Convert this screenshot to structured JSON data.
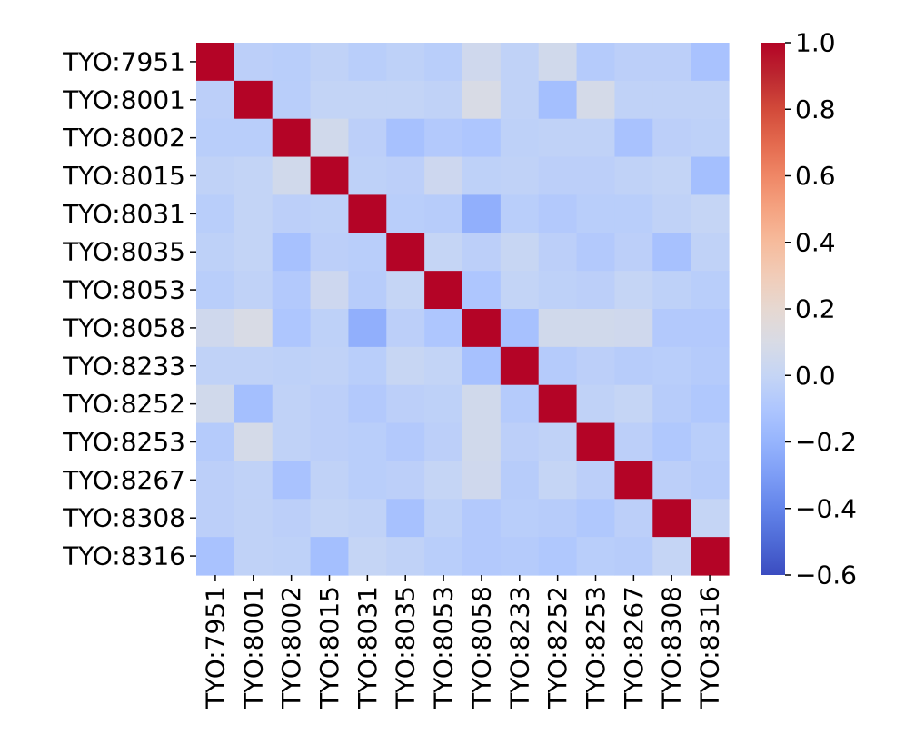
{
  "chart_data": {
    "type": "heatmap",
    "labels": [
      "TYO:7951",
      "TYO:8001",
      "TYO:8002",
      "TYO:8015",
      "TYO:8031",
      "TYO:8035",
      "TYO:8053",
      "TYO:8058",
      "TYO:8233",
      "TYO:8252",
      "TYO:8253",
      "TYO:8267",
      "TYO:8308",
      "TYO:8316"
    ],
    "row_labels": [
      "TYO:7951",
      "TYO:8001",
      "TYO:8002",
      "TYO:8015",
      "TYO:8031",
      "TYO:8035",
      "TYO:8053",
      "TYO:8058",
      "TYO:8233",
      "TYO:8252",
      "TYO:8253",
      "TYO:8267",
      "TYO:8308",
      "TYO:8316"
    ],
    "col_labels": [
      "TYO:7951",
      "TYO:8001",
      "TYO:8002",
      "TYO:8015",
      "TYO:8031",
      "TYO:8035",
      "TYO:8053",
      "TYO:8058",
      "TYO:8233",
      "TYO:8252",
      "TYO:8253",
      "TYO:8267",
      "TYO:8308",
      "TYO:8316"
    ],
    "values": [
      [
        1.0,
        -0.04,
        -0.05,
        -0.02,
        -0.05,
        -0.03,
        -0.05,
        0.05,
        -0.02,
        0.06,
        -0.07,
        -0.04,
        -0.04,
        -0.12
      ],
      [
        -0.04,
        1.0,
        -0.05,
        -0.01,
        -0.01,
        -0.01,
        -0.02,
        0.1,
        -0.02,
        -0.14,
        0.08,
        -0.02,
        -0.02,
        -0.02
      ],
      [
        -0.05,
        -0.05,
        1.0,
        0.06,
        -0.04,
        -0.13,
        -0.08,
        -0.1,
        -0.03,
        -0.02,
        -0.02,
        -0.12,
        -0.04,
        -0.03
      ],
      [
        -0.02,
        -0.01,
        0.06,
        1.0,
        -0.03,
        -0.04,
        0.04,
        -0.03,
        -0.02,
        -0.04,
        -0.04,
        -0.02,
        -0.01,
        -0.14
      ],
      [
        -0.05,
        -0.01,
        -0.04,
        -0.03,
        1.0,
        -0.05,
        -0.06,
        -0.22,
        -0.05,
        -0.08,
        -0.05,
        -0.05,
        -0.02,
        0.0
      ],
      [
        -0.03,
        -0.01,
        -0.13,
        -0.04,
        -0.05,
        1.0,
        0.0,
        -0.04,
        0.01,
        -0.04,
        -0.08,
        -0.04,
        -0.13,
        -0.02
      ],
      [
        -0.05,
        -0.02,
        -0.08,
        0.04,
        -0.06,
        0.0,
        1.0,
        -0.1,
        -0.01,
        -0.03,
        -0.04,
        0.0,
        -0.03,
        -0.05
      ],
      [
        0.05,
        0.1,
        -0.1,
        -0.03,
        -0.22,
        -0.04,
        -0.1,
        1.0,
        -0.13,
        0.06,
        0.06,
        0.05,
        -0.08,
        -0.08
      ],
      [
        -0.02,
        -0.02,
        -0.03,
        -0.02,
        -0.05,
        0.01,
        -0.01,
        -0.13,
        1.0,
        -0.07,
        -0.04,
        -0.06,
        -0.05,
        -0.07
      ],
      [
        0.06,
        -0.14,
        -0.02,
        -0.04,
        -0.08,
        -0.04,
        -0.03,
        0.06,
        -0.07,
        1.0,
        -0.02,
        0.0,
        -0.06,
        -0.09
      ],
      [
        -0.07,
        0.08,
        -0.02,
        -0.04,
        -0.05,
        -0.08,
        -0.04,
        0.06,
        -0.04,
        -0.02,
        1.0,
        -0.04,
        -0.09,
        -0.05
      ],
      [
        -0.04,
        -0.02,
        -0.12,
        -0.02,
        -0.05,
        -0.04,
        0.0,
        0.05,
        -0.06,
        0.0,
        -0.04,
        1.0,
        -0.04,
        -0.06
      ],
      [
        -0.04,
        -0.02,
        -0.04,
        -0.01,
        -0.02,
        -0.13,
        -0.03,
        -0.08,
        -0.05,
        -0.06,
        -0.09,
        -0.04,
        1.0,
        0.0
      ],
      [
        -0.12,
        -0.02,
        -0.03,
        -0.14,
        0.0,
        -0.02,
        -0.05,
        -0.08,
        -0.07,
        -0.09,
        -0.05,
        -0.06,
        0.0,
        1.0
      ]
    ],
    "vmin": -0.6,
    "vmax": 1.0,
    "colormap": "coolwarm",
    "colorbar_ticks": [
      1.0,
      0.8,
      0.6,
      0.4,
      0.2,
      0.0,
      -0.2,
      -0.4,
      -0.6
    ],
    "colorbar_tick_labels": [
      "1.0",
      "0.8",
      "0.6",
      "0.4",
      "0.2",
      "0.0",
      "−0.2",
      "−0.4",
      "−0.6"
    ],
    "title": "",
    "xlabel": "",
    "ylabel": ""
  }
}
